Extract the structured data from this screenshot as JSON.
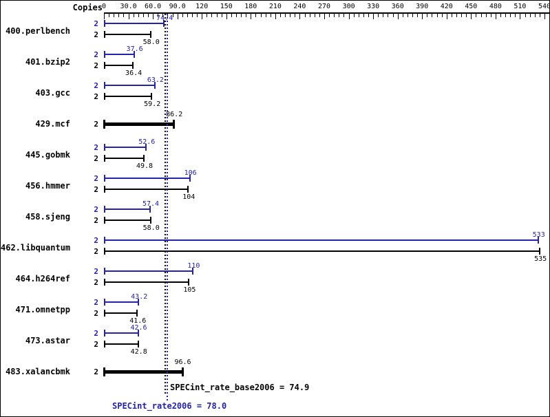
{
  "chart_data": {
    "type": "bar",
    "orientation": "horizontal",
    "copies_header": "Copies",
    "colors": {
      "peak": "#2222aa",
      "base": "#000000",
      "background": "#ffffff"
    },
    "axis": {
      "min": 0,
      "max": 540,
      "major_tick": 30,
      "minor_tick": 6,
      "tick_labels": [
        "0",
        "30.0",
        "60.0",
        "90.0",
        "120",
        "150",
        "180",
        "210",
        "240",
        "270",
        "300",
        "330",
        "360",
        "390",
        "420",
        "450",
        "480",
        "510",
        "540"
      ]
    },
    "benchmarks": [
      {
        "name": "400.perlbench",
        "copies": "2",
        "merged": false,
        "bars": [
          {
            "series": "peak",
            "value": 74.4,
            "label": "74.4"
          },
          {
            "series": "base",
            "value": 58.0,
            "label": "58.0"
          }
        ]
      },
      {
        "name": "401.bzip2",
        "copies": "2",
        "merged": false,
        "bars": [
          {
            "series": "peak",
            "value": 37.6,
            "label": "37.6"
          },
          {
            "series": "base",
            "value": 36.4,
            "label": "36.4"
          }
        ]
      },
      {
        "name": "403.gcc",
        "copies": "2",
        "merged": false,
        "bars": [
          {
            "series": "peak",
            "value": 63.2,
            "label": "63.2"
          },
          {
            "series": "base",
            "value": 59.2,
            "label": "59.2"
          }
        ]
      },
      {
        "name": "429.mcf",
        "copies": "2",
        "merged": true,
        "bars": [
          {
            "series": "base",
            "value": 86.2,
            "label": "86.2"
          }
        ]
      },
      {
        "name": "445.gobmk",
        "copies": "2",
        "merged": false,
        "bars": [
          {
            "series": "peak",
            "value": 52.6,
            "label": "52.6"
          },
          {
            "series": "base",
            "value": 49.8,
            "label": "49.8"
          }
        ]
      },
      {
        "name": "456.hmmer",
        "copies": "2",
        "merged": false,
        "bars": [
          {
            "series": "peak",
            "value": 106,
            "label": "106"
          },
          {
            "series": "base",
            "value": 104,
            "label": "104"
          }
        ]
      },
      {
        "name": "458.sjeng",
        "copies": "2",
        "merged": false,
        "bars": [
          {
            "series": "peak",
            "value": 57.4,
            "label": "57.4"
          },
          {
            "series": "base",
            "value": 58.0,
            "label": "58.0"
          }
        ]
      },
      {
        "name": "462.libquantum",
        "copies": "2",
        "merged": false,
        "bars": [
          {
            "series": "peak",
            "value": 533,
            "label": "533"
          },
          {
            "series": "base",
            "value": 535,
            "label": "535"
          }
        ]
      },
      {
        "name": "464.h264ref",
        "copies": "2",
        "merged": false,
        "bars": [
          {
            "series": "peak",
            "value": 110,
            "label": "110"
          },
          {
            "series": "base",
            "value": 105,
            "label": "105"
          }
        ]
      },
      {
        "name": "471.omnetpp",
        "copies": "2",
        "merged": false,
        "bars": [
          {
            "series": "peak",
            "value": 43.2,
            "label": "43.2"
          },
          {
            "series": "base",
            "value": 41.6,
            "label": "41.6"
          }
        ]
      },
      {
        "name": "473.astar",
        "copies": "2",
        "merged": false,
        "bars": [
          {
            "series": "peak",
            "value": 42.6,
            "label": "42.6"
          },
          {
            "series": "base",
            "value": 42.8,
            "label": "42.8"
          }
        ]
      },
      {
        "name": "483.xalancbmk",
        "copies": "2",
        "merged": true,
        "bars": [
          {
            "series": "base",
            "value": 96.6,
            "label": "96.6"
          }
        ]
      }
    ],
    "means": [
      {
        "name": "SPECint_rate_base2006",
        "series": "base",
        "value": 74.9,
        "label": "SPECint_rate_base2006 = 74.9"
      },
      {
        "name": "SPECint_rate2006",
        "series": "peak",
        "value": 78.0,
        "label": "SPECint_rate2006 = 78.0"
      }
    ]
  }
}
